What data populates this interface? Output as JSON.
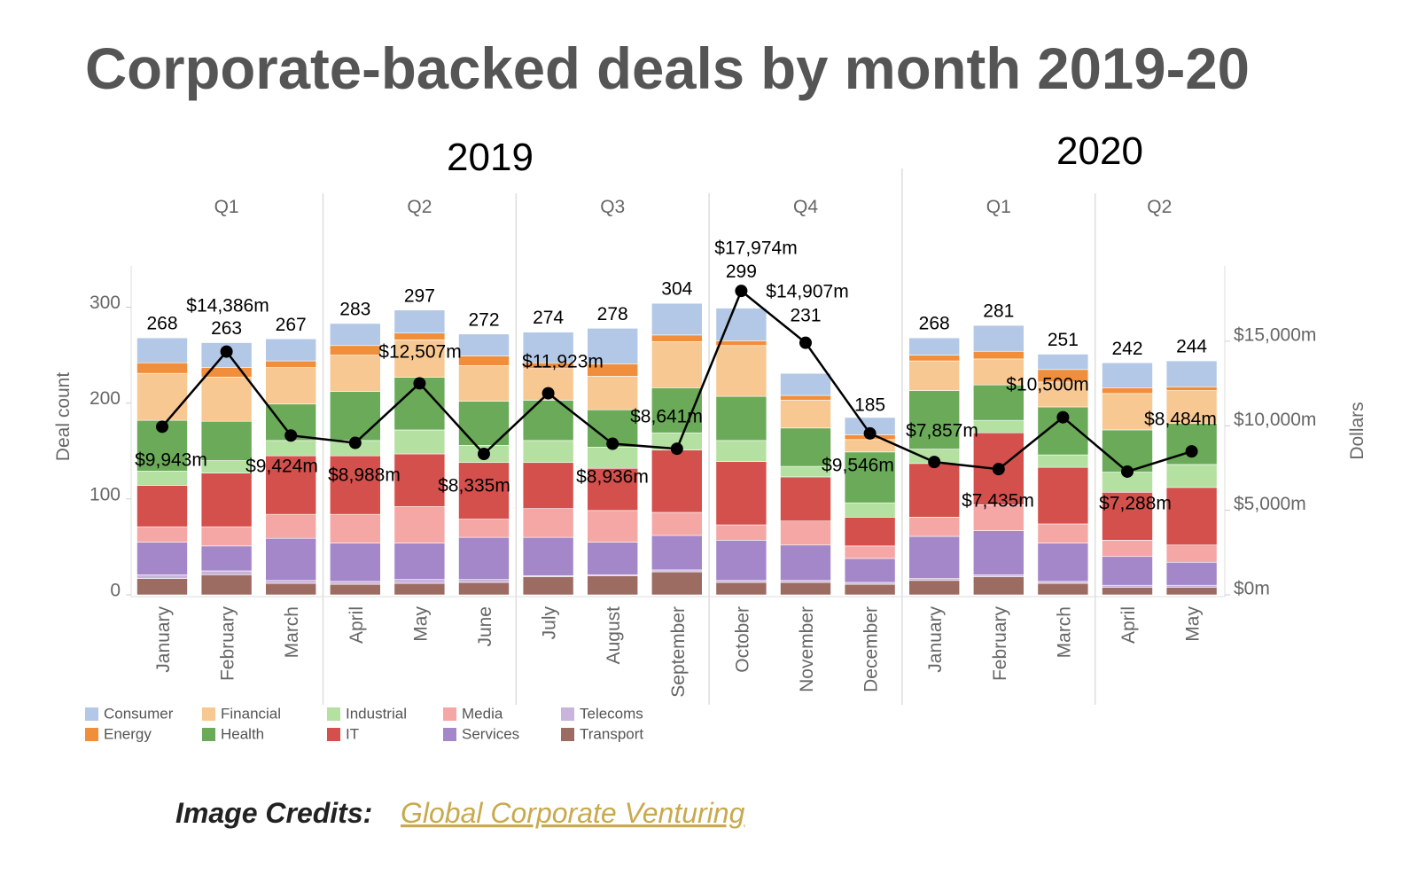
{
  "chart_data": {
    "type": "bar",
    "stacked": true,
    "title": "Corporate-backed deals by month 2019-20",
    "year_labels": [
      "2019",
      "2020"
    ],
    "quarter_labels": [
      "Q1",
      "Q2",
      "Q3",
      "Q4",
      "Q1",
      "Q2"
    ],
    "categories": [
      "January",
      "February",
      "March",
      "April",
      "May",
      "June",
      "July",
      "August",
      "September",
      "October",
      "November",
      "December",
      "January",
      "February",
      "March",
      "April",
      "May"
    ],
    "ylabel": "Deal count",
    "y2label": "Dollars",
    "ylim": [
      0,
      343
    ],
    "yticks": [
      0,
      100,
      200,
      300
    ],
    "y2lim": [
      0,
      19450
    ],
    "y2ticks": [
      {
        "value": 0,
        "label": "$0m"
      },
      {
        "value": 5000,
        "label": "$5,000m"
      },
      {
        "value": 10000,
        "label": "$10,000m"
      },
      {
        "value": 15000,
        "label": "$15,000m"
      }
    ],
    "series": [
      {
        "name": "Transport",
        "color": "#9c6b62",
        "values": [
          17,
          21,
          12,
          11,
          12,
          13,
          19,
          20,
          24,
          13,
          13,
          11,
          15,
          19,
          12,
          8,
          8
        ]
      },
      {
        "name": "Telecoms",
        "color": "#c9b4dc",
        "values": [
          4,
          4,
          3,
          3,
          4,
          3,
          1,
          1,
          2,
          2,
          2,
          2,
          2,
          2,
          2,
          2,
          2
        ]
      },
      {
        "name": "Services",
        "color": "#a487c9",
        "values": [
          34,
          26,
          44,
          40,
          38,
          44,
          40,
          34,
          36,
          42,
          37,
          25,
          44,
          46,
          40,
          30,
          24
        ]
      },
      {
        "name": "Media",
        "color": "#f4a7a5",
        "values": [
          16,
          20,
          25,
          30,
          38,
          19,
          30,
          33,
          24,
          16,
          25,
          13,
          20,
          27,
          20,
          17,
          18
        ]
      },
      {
        "name": "IT",
        "color": "#d4504c",
        "values": [
          43,
          56,
          61,
          61,
          55,
          59,
          48,
          44,
          65,
          66,
          46,
          30,
          56,
          75,
          59,
          50,
          60
        ]
      },
      {
        "name": "Industrial",
        "color": "#b4e0a1",
        "values": [
          15,
          13,
          16,
          16,
          25,
          18,
          23,
          22,
          18,
          22,
          11,
          15,
          15,
          13,
          13,
          21,
          24
        ]
      },
      {
        "name": "Health",
        "color": "#6aaa58",
        "values": [
          53,
          41,
          38,
          51,
          55,
          46,
          42,
          39,
          47,
          46,
          40,
          53,
          61,
          37,
          50,
          44,
          43
        ]
      },
      {
        "name": "Financial",
        "color": "#f8c892",
        "values": [
          49,
          46,
          38,
          38,
          39,
          37,
          33,
          35,
          48,
          53,
          29,
          13,
          31,
          27,
          26,
          38,
          34
        ]
      },
      {
        "name": "Energy",
        "color": "#f08e3c",
        "values": [
          11,
          10,
          7,
          10,
          7,
          10,
          6,
          13,
          7,
          5,
          5,
          5,
          6,
          8,
          13,
          6,
          4
        ]
      },
      {
        "name": "Consumer",
        "color": "#b3c8e6",
        "values": [
          26,
          26,
          23,
          23,
          24,
          23,
          32,
          37,
          33,
          34,
          23,
          18,
          18,
          27,
          16,
          26,
          27
        ]
      },
      {
        "type": "line",
        "axis": "y2",
        "color": "#000000",
        "values": [
          9943,
          14386,
          9424,
          8988,
          12507,
          8335,
          11923,
          8936,
          8641,
          17974,
          14907,
          9546,
          7857,
          7435,
          10500,
          7288,
          8484
        ],
        "value_labels": [
          "$9,943m",
          "$14,386m",
          "$9,424m",
          "$8,988m",
          "$12,507m",
          "$8,335m",
          "$11,923m",
          "$8,936m",
          "$8,641m",
          "$17,974m",
          "$14,907m",
          "$9,546m",
          "$7,857m",
          "$7,435m",
          "$10,500m",
          "$7,288m",
          "$8,484m"
        ]
      }
    ],
    "totals": [
      268,
      263,
      267,
      283,
      297,
      272,
      274,
      278,
      304,
      299,
      231,
      185,
      268,
      281,
      251,
      242,
      244
    ]
  },
  "credits": {
    "label": "Image Credits:",
    "source": "Global Corporate Venturing"
  }
}
